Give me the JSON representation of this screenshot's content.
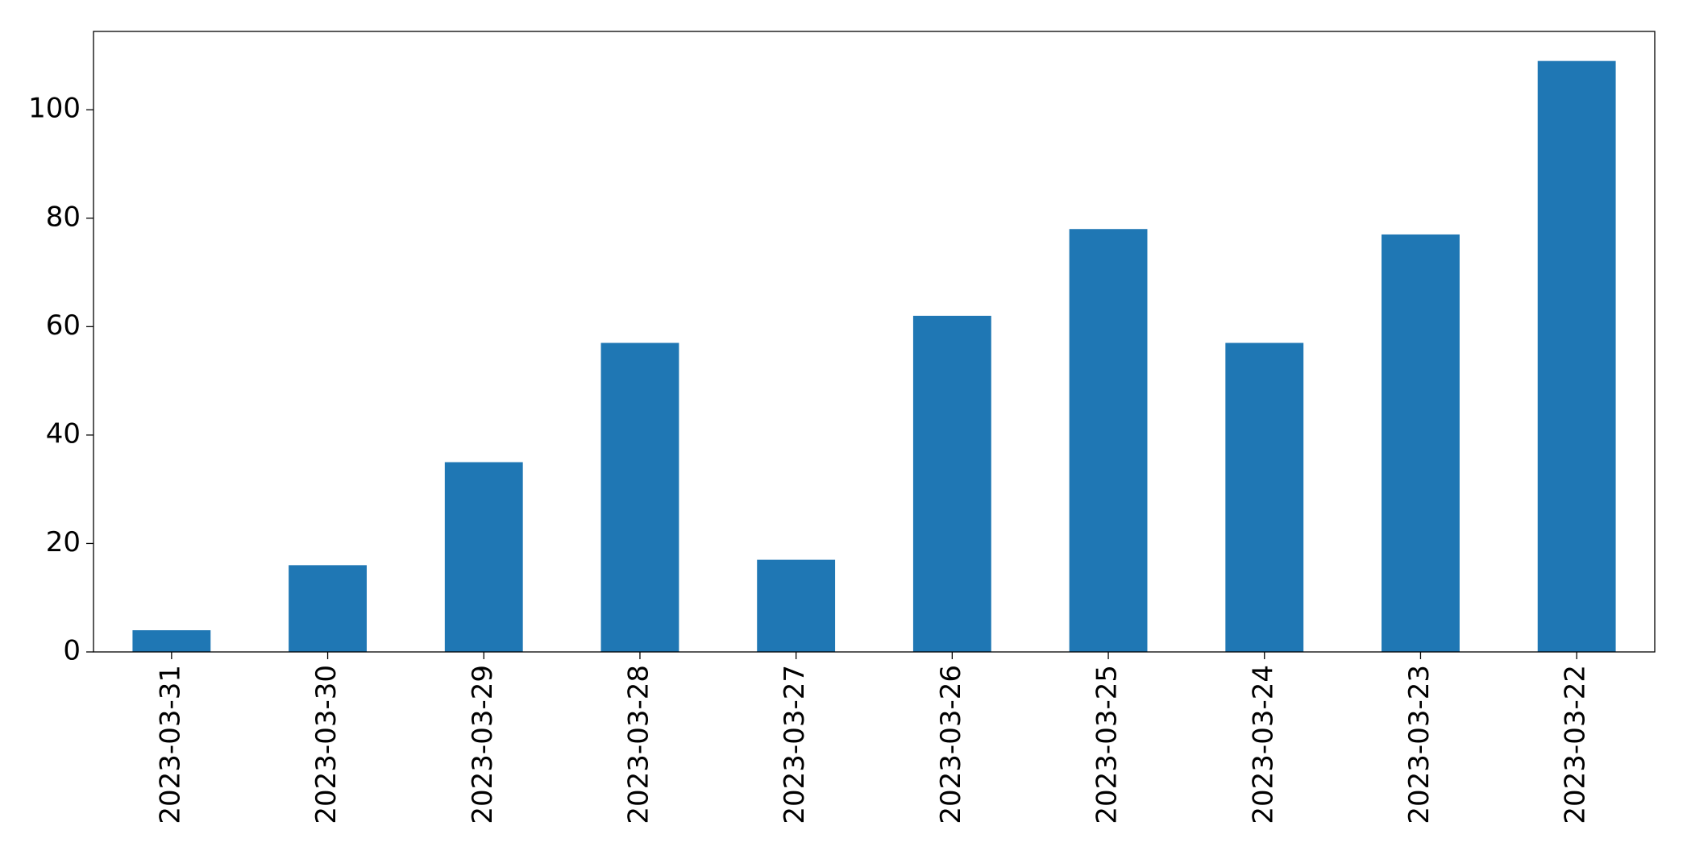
{
  "chart_data": {
    "type": "bar",
    "categories": [
      "2023-03-31",
      "2023-03-30",
      "2023-03-29",
      "2023-03-28",
      "2023-03-27",
      "2023-03-26",
      "2023-03-25",
      "2023-03-24",
      "2023-03-23",
      "2023-03-22"
    ],
    "values": [
      4,
      16,
      35,
      57,
      17,
      62,
      78,
      57,
      77,
      109
    ],
    "color": "#1f77b4",
    "ylim": [
      0,
      114.45
    ],
    "yticks": [
      0,
      20,
      40,
      60,
      80,
      100
    ],
    "grid": false
  }
}
